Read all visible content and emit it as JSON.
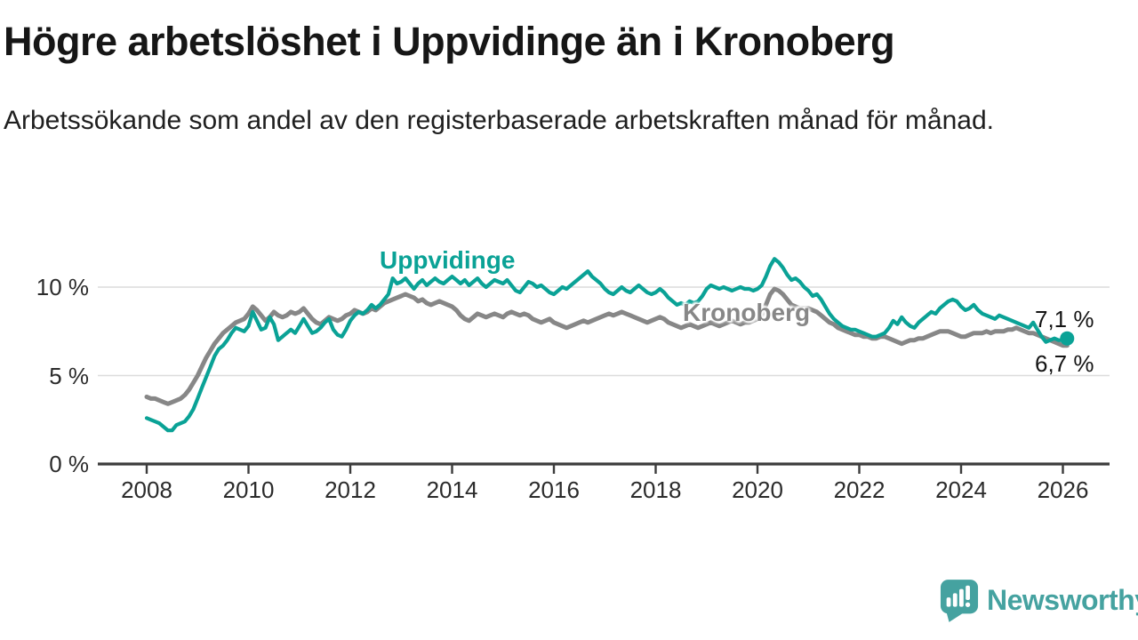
{
  "header": {
    "title": "Högre arbetslöshet i Uppvidinge än i Kronoberg",
    "subtitle": "Arbetssökande som andel av den registerbaserade arbetskraften månad för månad."
  },
  "chart_data": {
    "type": "line",
    "title": "Högre arbetslöshet i Uppvidinge än i Kronoberg",
    "subtitle": "Arbetssökande som andel av den registerbaserade arbetskraften månad för månad.",
    "unit": "percent of registered labour force",
    "x_start": "2008-01",
    "x_end": "2026-02",
    "x_interval": "monthly",
    "grid": "horizontal",
    "legend_position": "inline-labels",
    "ylim": [
      0,
      12
    ],
    "xlim": [
      2007.0,
      2026.9
    ],
    "yticks": [
      {
        "value": 0,
        "label": "0 %"
      },
      {
        "value": 5,
        "label": "5 %"
      },
      {
        "value": 10,
        "label": "10 %"
      }
    ],
    "xticks": [
      {
        "value": 2008,
        "label": "2008"
      },
      {
        "value": 2010,
        "label": "2010"
      },
      {
        "value": 2012,
        "label": "2012"
      },
      {
        "value": 2014,
        "label": "2014"
      },
      {
        "value": 2016,
        "label": "2016"
      },
      {
        "value": 2018,
        "label": "2018"
      },
      {
        "value": 2020,
        "label": "2020"
      },
      {
        "value": 2022,
        "label": "2022"
      },
      {
        "value": 2024,
        "label": "2024"
      },
      {
        "value": 2026,
        "label": "2026"
      }
    ],
    "series": [
      {
        "name": "Uppvidinge",
        "color": "#0aa296",
        "end_value_label": "7,1 %",
        "values": [
          2.6,
          2.5,
          2.4,
          2.3,
          2.1,
          1.9,
          1.9,
          2.2,
          2.3,
          2.4,
          2.7,
          3.1,
          3.7,
          4.3,
          4.9,
          5.5,
          6.1,
          6.5,
          6.7,
          7.0,
          7.4,
          7.7,
          7.6,
          7.5,
          7.8,
          8.6,
          8.1,
          7.6,
          7.7,
          8.3,
          7.9,
          7.0,
          7.2,
          7.4,
          7.6,
          7.4,
          7.8,
          8.2,
          7.8,
          7.4,
          7.5,
          7.7,
          8.0,
          8.2,
          7.6,
          7.3,
          7.2,
          7.6,
          8.1,
          8.4,
          8.6,
          8.5,
          8.7,
          9.0,
          8.8,
          9.0,
          9.3,
          9.6,
          10.5,
          10.2,
          10.3,
          10.5,
          10.2,
          9.9,
          10.2,
          10.4,
          10.1,
          10.3,
          10.5,
          10.3,
          10.2,
          10.4,
          10.6,
          10.4,
          10.2,
          10.4,
          10.1,
          10.3,
          10.5,
          10.2,
          10.0,
          10.2,
          10.4,
          10.3,
          10.2,
          10.4,
          10.1,
          9.8,
          9.7,
          10.0,
          10.3,
          10.2,
          10.0,
          10.1,
          9.9,
          9.7,
          9.6,
          9.8,
          10.0,
          9.9,
          10.1,
          10.3,
          10.5,
          10.7,
          10.9,
          10.6,
          10.4,
          10.2,
          9.9,
          9.7,
          9.6,
          9.8,
          10.0,
          9.8,
          9.7,
          9.9,
          10.1,
          9.9,
          9.7,
          9.6,
          9.7,
          9.9,
          9.7,
          9.4,
          9.2,
          9.0,
          9.1,
          9.0,
          9.2,
          9.1,
          9.2,
          9.5,
          9.9,
          10.1,
          10.0,
          9.9,
          10.0,
          9.9,
          9.8,
          9.9,
          10.0,
          9.9,
          9.9,
          9.8,
          9.9,
          10.1,
          10.6,
          11.2,
          11.6,
          11.4,
          11.1,
          10.7,
          10.4,
          10.5,
          10.3,
          10.0,
          9.8,
          9.5,
          9.6,
          9.3,
          8.9,
          8.5,
          8.2,
          8.0,
          7.8,
          7.7,
          7.6,
          7.6,
          7.5,
          7.4,
          7.3,
          7.2,
          7.2,
          7.3,
          7.4,
          7.7,
          8.1,
          7.9,
          8.3,
          8.0,
          7.8,
          7.7,
          8.0,
          8.2,
          8.4,
          8.6,
          8.5,
          8.8,
          9.0,
          9.2,
          9.3,
          9.2,
          8.9,
          8.7,
          8.8,
          9.0,
          8.7,
          8.5,
          8.4,
          8.3,
          8.2,
          8.4,
          8.3,
          8.2,
          8.1,
          8.0,
          7.9,
          7.8,
          7.7,
          8.0,
          7.6,
          7.2,
          6.9,
          7.0,
          7.1,
          7.0,
          7.0,
          7.1
        ]
      },
      {
        "name": "Kronoberg",
        "color": "#878787",
        "end_value_label": "6,7 %",
        "values": [
          3.8,
          3.7,
          3.7,
          3.6,
          3.5,
          3.4,
          3.5,
          3.6,
          3.7,
          3.9,
          4.2,
          4.6,
          5.0,
          5.5,
          6.0,
          6.4,
          6.8,
          7.1,
          7.4,
          7.6,
          7.8,
          8.0,
          8.1,
          8.2,
          8.5,
          8.9,
          8.7,
          8.4,
          8.1,
          8.3,
          8.6,
          8.4,
          8.3,
          8.4,
          8.6,
          8.5,
          8.6,
          8.8,
          8.5,
          8.2,
          8.0,
          7.9,
          8.1,
          8.3,
          8.2,
          8.1,
          8.2,
          8.4,
          8.5,
          8.7,
          8.6,
          8.5,
          8.6,
          8.8,
          8.7,
          8.9,
          9.1,
          9.2,
          9.3,
          9.4,
          9.5,
          9.6,
          9.5,
          9.4,
          9.2,
          9.3,
          9.1,
          9.0,
          9.1,
          9.2,
          9.1,
          9.0,
          8.9,
          8.7,
          8.4,
          8.2,
          8.1,
          8.3,
          8.5,
          8.4,
          8.3,
          8.4,
          8.5,
          8.4,
          8.3,
          8.5,
          8.6,
          8.5,
          8.4,
          8.5,
          8.4,
          8.2,
          8.1,
          8.0,
          8.1,
          8.2,
          8.0,
          7.9,
          7.8,
          7.7,
          7.8,
          7.9,
          8.0,
          8.1,
          8.0,
          8.1,
          8.2,
          8.3,
          8.4,
          8.5,
          8.4,
          8.5,
          8.6,
          8.5,
          8.4,
          8.3,
          8.2,
          8.1,
          8.0,
          8.1,
          8.2,
          8.3,
          8.2,
          8.0,
          7.9,
          7.8,
          7.7,
          7.8,
          7.9,
          7.8,
          7.7,
          7.8,
          7.9,
          8.0,
          7.9,
          7.8,
          7.9,
          8.0,
          8.1,
          8.0,
          7.9,
          8.0,
          8.0,
          8.1,
          8.2,
          8.4,
          9.0,
          9.6,
          9.9,
          9.8,
          9.6,
          9.3,
          9.0,
          8.9,
          8.8,
          8.8,
          8.8,
          8.7,
          8.6,
          8.4,
          8.2,
          8.0,
          7.9,
          7.7,
          7.6,
          7.5,
          7.4,
          7.3,
          7.3,
          7.2,
          7.2,
          7.1,
          7.1,
          7.2,
          7.2,
          7.1,
          7.0,
          6.9,
          6.8,
          6.9,
          7.0,
          7.0,
          7.1,
          7.1,
          7.2,
          7.3,
          7.4,
          7.5,
          7.5,
          7.5,
          7.4,
          7.3,
          7.2,
          7.2,
          7.3,
          7.4,
          7.4,
          7.4,
          7.5,
          7.4,
          7.5,
          7.5,
          7.5,
          7.6,
          7.6,
          7.7,
          7.6,
          7.5,
          7.4,
          7.4,
          7.3,
          7.2,
          7.1,
          7.0,
          6.9,
          6.8,
          6.7,
          6.7
        ]
      }
    ],
    "annotations": {
      "uppvidinge_label": "Uppvidinge",
      "kronoberg_label": "Kronoberg",
      "end_label_top": "7,1 %",
      "end_label_bottom": "6,7 %"
    },
    "colors": {
      "uppvidinge": "#0aa296",
      "kronoberg": "#878787",
      "gridline": "#dcdcdc",
      "axis": "#3c3c3c",
      "text": "#2b2b2b"
    }
  },
  "footer": {
    "brand": "Newsworthy",
    "brand_color": "#45a2a0"
  }
}
